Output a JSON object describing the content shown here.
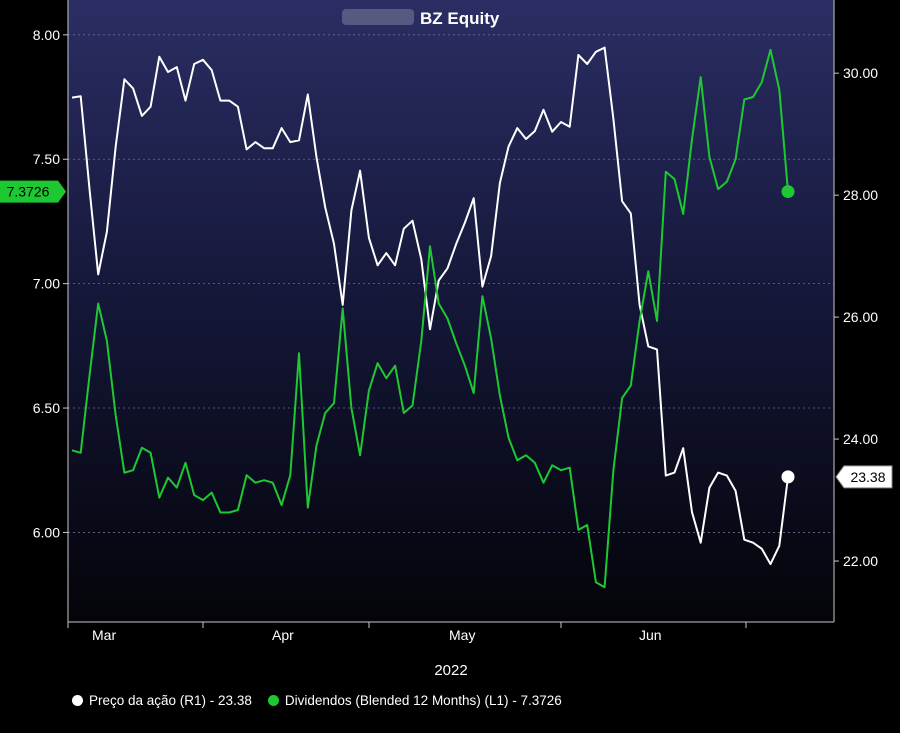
{
  "chart_data": {
    "type": "line",
    "title": "BZ Equity",
    "title_prefix_blurred": true,
    "xlabel": "2022",
    "x_tick_labels": [
      "Mar",
      "Apr",
      "May",
      "Jun"
    ],
    "y_left": {
      "ylim": [
        5.64,
        8.14
      ],
      "ticks": [
        6.0,
        6.5,
        7.0,
        7.5,
        8.0
      ],
      "tick_labels": [
        "6.00",
        "6.50",
        "7.00",
        "7.50",
        "8.00"
      ]
    },
    "y_right": {
      "ylim": [
        21.0,
        31.2
      ],
      "ticks": [
        22,
        24,
        26,
        28,
        30
      ],
      "tick_labels": [
        "22.00",
        "24.00",
        "26.00",
        "28.00",
        "30.00"
      ]
    },
    "grid": true,
    "legend_position": "bottom",
    "series": [
      {
        "name": "Preço da ação (R1) - 23.38",
        "axis": "right",
        "color": "#ffffff",
        "last_label": "23.38",
        "values": [
          29.6,
          29.62,
          28.1,
          26.7,
          27.4,
          28.8,
          29.9,
          29.75,
          29.3,
          29.45,
          30.27,
          30.02,
          30.1,
          29.55,
          30.15,
          30.22,
          30.05,
          29.55,
          29.55,
          29.45,
          28.75,
          28.87,
          28.77,
          28.77,
          29.1,
          28.87,
          28.9,
          29.65,
          28.62,
          27.8,
          27.2,
          26.2,
          27.75,
          28.4,
          27.3,
          26.85,
          27.05,
          26.85,
          27.45,
          27.58,
          26.95,
          25.8,
          26.6,
          26.8,
          27.2,
          27.55,
          27.95,
          26.5,
          27.0,
          28.2,
          28.8,
          29.1,
          28.92,
          29.05,
          29.4,
          29.04,
          29.2,
          29.12,
          30.3,
          30.15,
          30.35,
          30.42,
          29.25,
          27.9,
          27.7,
          26.2,
          25.52,
          25.47,
          23.4,
          23.45,
          23.85,
          22.8,
          22.3,
          23.2,
          23.45,
          23.4,
          23.15,
          22.35,
          22.3,
          22.2,
          21.95,
          22.25,
          23.38
        ]
      },
      {
        "name": "Dividendos (Blended 12 Months) (L1) - 7.3726",
        "axis": "left",
        "color": "#1ec832",
        "last_label": "7.3726",
        "values": [
          6.33,
          6.32,
          6.63,
          6.92,
          6.77,
          6.47,
          6.24,
          6.25,
          6.34,
          6.32,
          6.14,
          6.22,
          6.18,
          6.28,
          6.15,
          6.13,
          6.16,
          6.08,
          6.08,
          6.09,
          6.23,
          6.2,
          6.21,
          6.2,
          6.11,
          6.23,
          6.72,
          6.1,
          6.35,
          6.48,
          6.52,
          6.9,
          6.5,
          6.31,
          6.57,
          6.68,
          6.62,
          6.67,
          6.48,
          6.51,
          6.77,
          7.15,
          6.92,
          6.86,
          6.76,
          6.67,
          6.56,
          6.95,
          6.78,
          6.55,
          6.38,
          6.29,
          6.31,
          6.28,
          6.2,
          6.27,
          6.25,
          6.26,
          6.01,
          6.03,
          5.8,
          5.78,
          6.25,
          6.54,
          6.59,
          6.85,
          7.05,
          6.85,
          7.45,
          7.42,
          7.28,
          7.58,
          7.83,
          7.51,
          7.38,
          7.41,
          7.5,
          7.74,
          7.75,
          7.81,
          7.94,
          7.78,
          7.37
        ]
      }
    ]
  }
}
